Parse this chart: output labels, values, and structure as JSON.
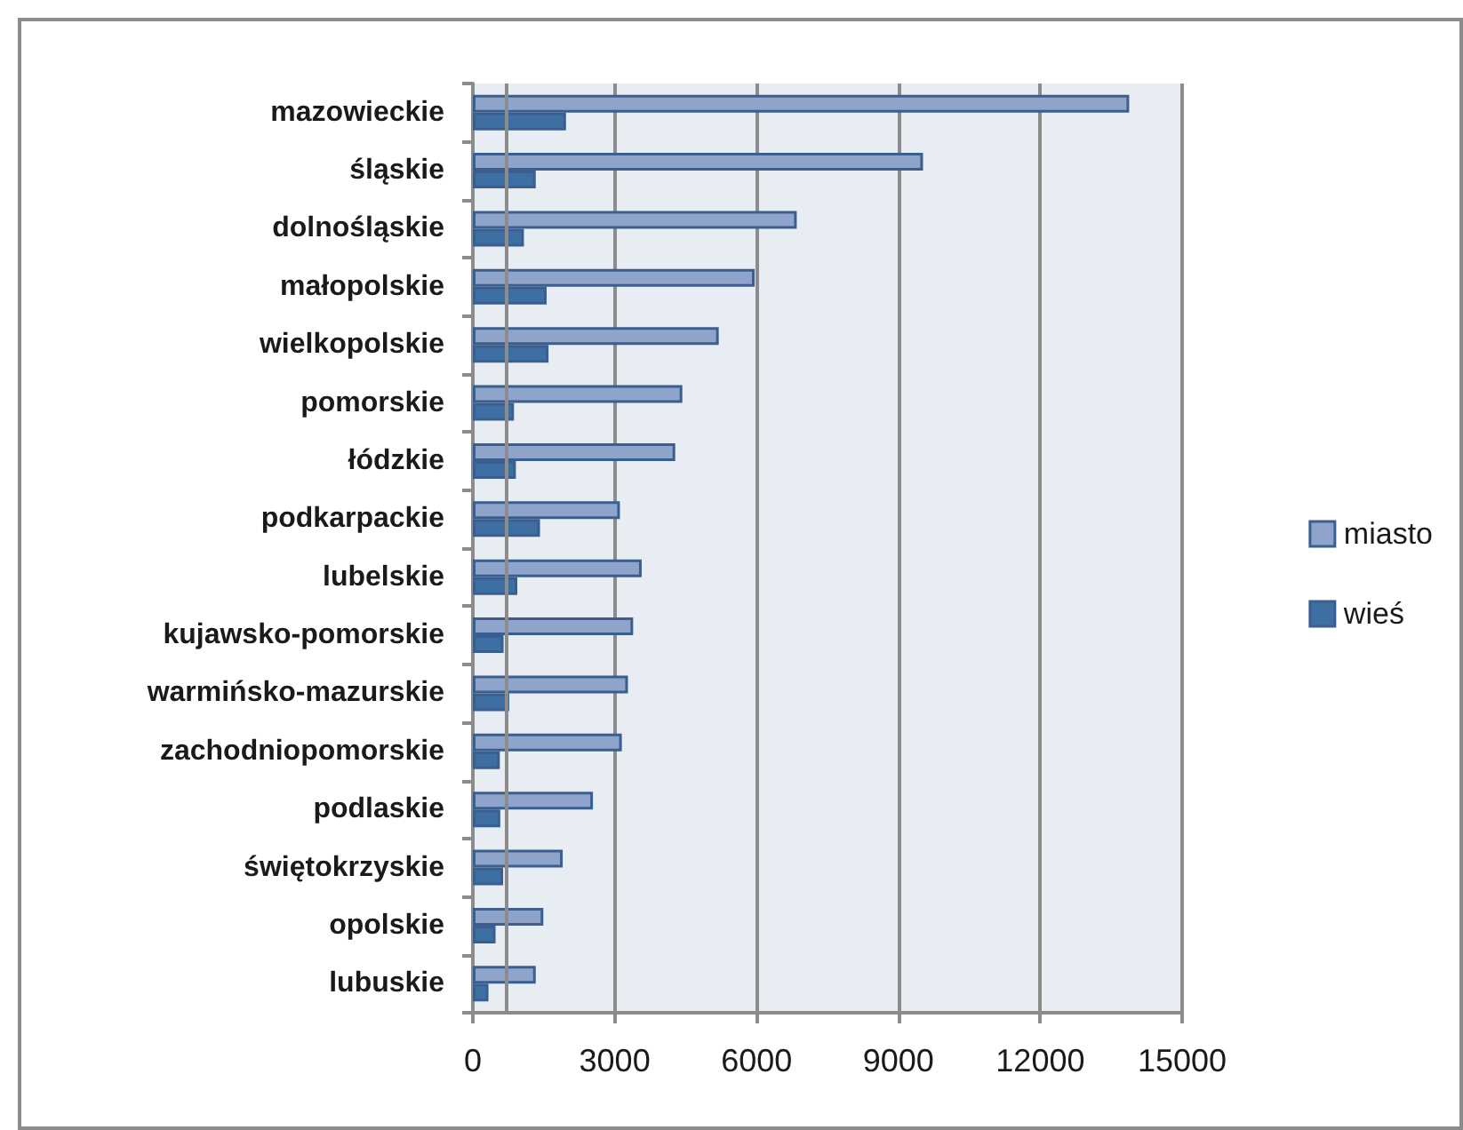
{
  "chart_data": {
    "type": "bar",
    "orientation": "horizontal",
    "categories": [
      "mazowieckie",
      "śląskie",
      "dolnośląskie",
      "małopolskie",
      "wielkopolskie",
      "pomorskie",
      "łódzkie",
      "podkarpackie",
      "lubelskie",
      "kujawsko-pomorskie",
      "warmińsko-mazurskie",
      "zachodniopomorskie",
      "podlaskie",
      "świętokrzyskie",
      "opolskie",
      "lubuskie"
    ],
    "series": [
      {
        "name": "miasto",
        "color": "#8fa4cb",
        "values": [
          13880,
          9520,
          6850,
          5960,
          5200,
          4430,
          4280,
          3110,
          3570,
          3390,
          3280,
          3150,
          2540,
          1900,
          1490,
          1330
        ]
      },
      {
        "name": "wieś",
        "color": "#3d6fa3",
        "values": [
          1970,
          1330,
          1080,
          1560,
          1600,
          870,
          910,
          1420,
          940,
          650,
          770,
          570,
          580,
          640,
          480,
          330
        ]
      }
    ],
    "xlim": [
      0,
      15000
    ],
    "xticks": [
      0,
      3000,
      6000,
      9000,
      12000,
      15000
    ],
    "ref_lines": [
      {
        "axis": "x",
        "value": 690,
        "color": "#8c8c8c"
      }
    ],
    "grid": "x",
    "legend": "right"
  }
}
